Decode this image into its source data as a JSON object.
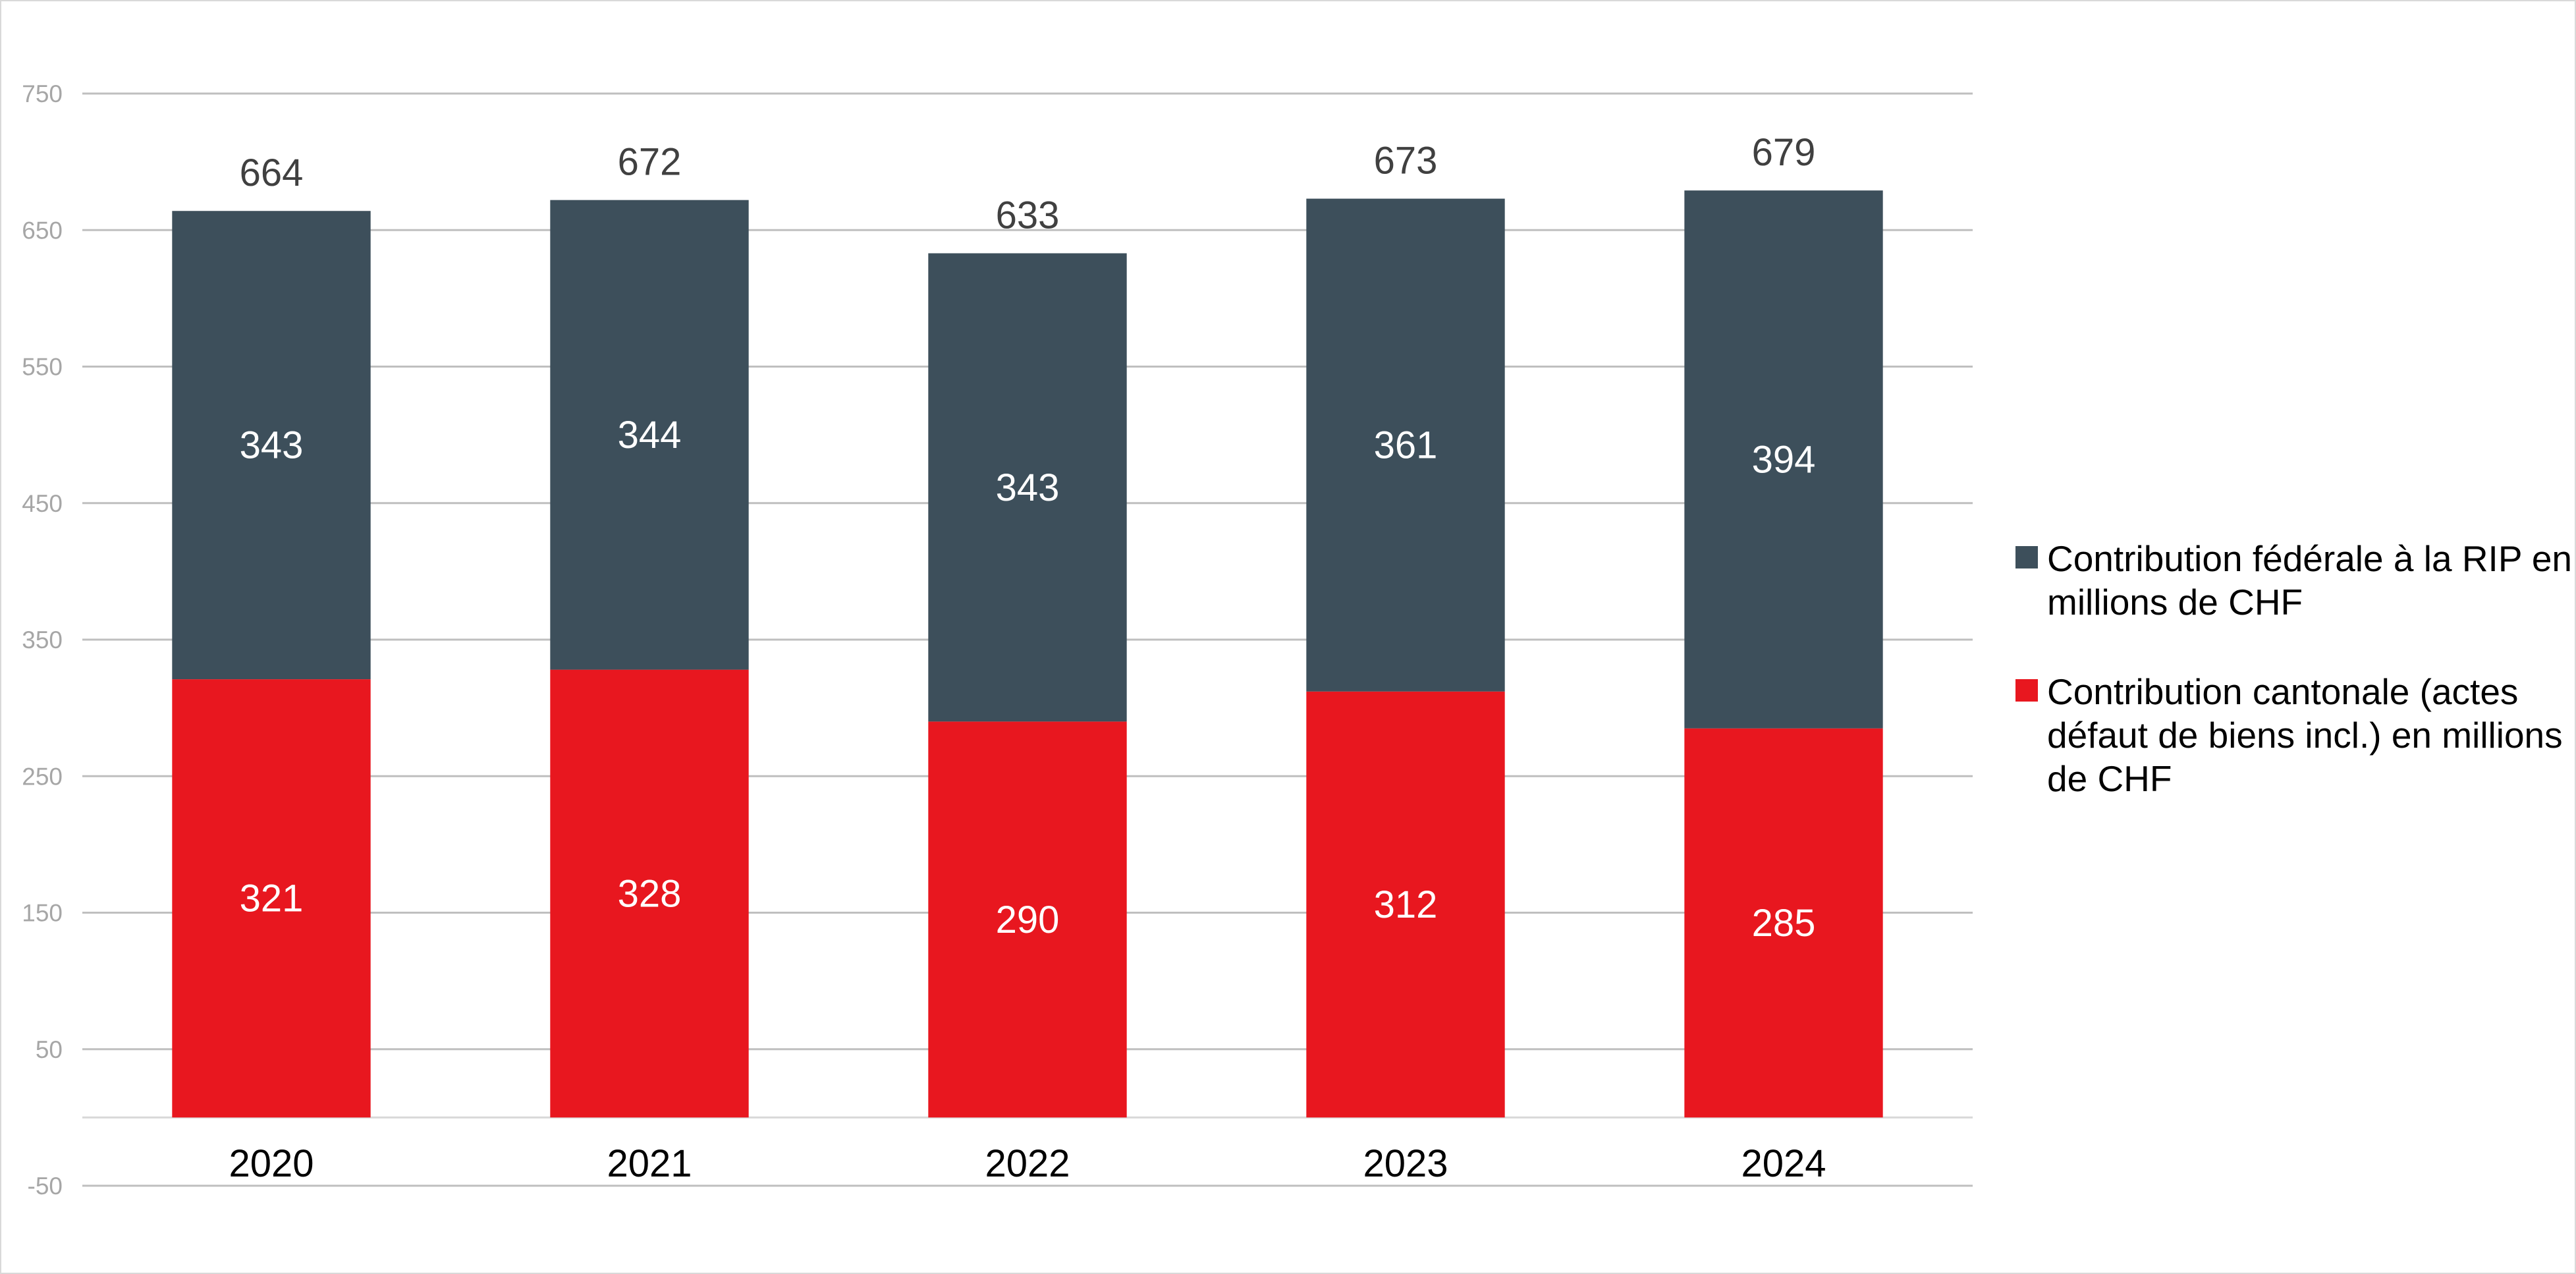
{
  "chart_data": {
    "type": "bar",
    "stacked": true,
    "categories": [
      "2020",
      "2021",
      "2022",
      "2023",
      "2024"
    ],
    "series": [
      {
        "name": "Contribution cantonale (actes défaut de biens incl.) en millions de CHF",
        "color": "#e8171f",
        "values": [
          321,
          328,
          290,
          312,
          285
        ]
      },
      {
        "name": "Contribution fédérale à la RIP en millions de CHF",
        "color": "#3d4f5b",
        "values": [
          343,
          344,
          343,
          361,
          394
        ]
      }
    ],
    "totals": [
      664,
      672,
      633,
      673,
      679
    ],
    "yticks": [
      "-50",
      "50",
      "150",
      "250",
      "350",
      "450",
      "550",
      "650",
      "750"
    ],
    "ylim": [
      -50,
      750
    ],
    "grid": true,
    "legend_position": "right",
    "title": "",
    "xlabel": "",
    "ylabel": ""
  },
  "legend": {
    "items": [
      {
        "label": "Contribution fédérale à la RIP en millions de CHF",
        "color": "#3d4f5b"
      },
      {
        "label": "Contribution cantonale (actes défaut de biens incl.) en millions de CHF",
        "color": "#e8171f"
      }
    ]
  }
}
